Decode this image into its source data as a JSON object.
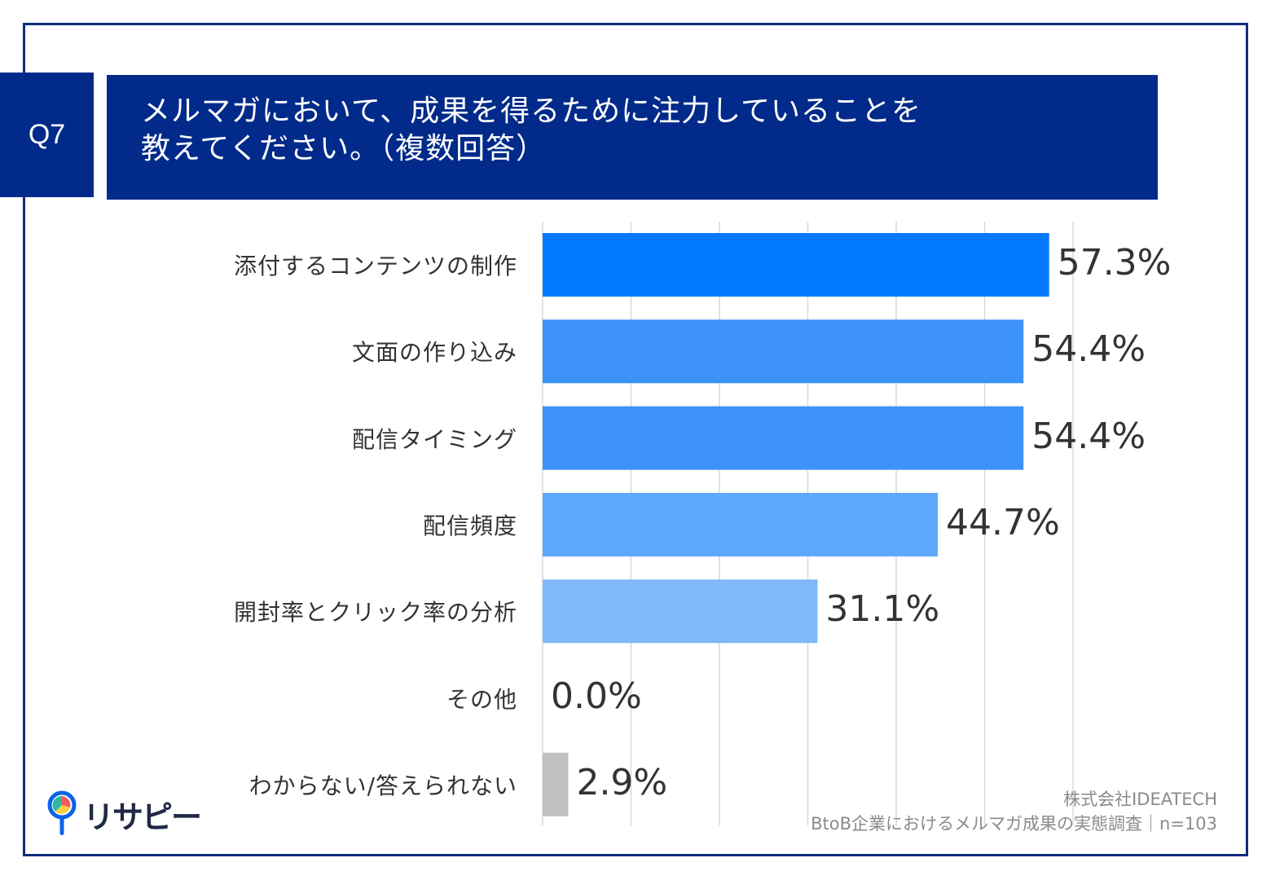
{
  "header": {
    "badge": "Q7",
    "title_line1": "メルマガにおいて、成果を得るために注力していることを",
    "title_line2": "教えてください。（複数回答）"
  },
  "chart_data": {
    "type": "bar",
    "orientation": "horizontal",
    "categories": [
      "添付するコンテンツの制作",
      "文面の作り込み",
      "配信タイミング",
      "配信頻度",
      "開封率とクリック率の分析",
      "その他",
      "わからない/答えられない"
    ],
    "values": [
      57.3,
      54.4,
      54.4,
      44.7,
      31.1,
      0.0,
      2.9
    ],
    "value_labels": [
      "57.3%",
      "54.4%",
      "54.4%",
      "44.7%",
      "31.1%",
      "0.0%",
      "2.9%"
    ],
    "colors": [
      "#0279fd",
      "#3d92f8",
      "#3d92f8",
      "#5ea8fb",
      "#80b9fb",
      "#80b9fb",
      "#c1c1c1"
    ],
    "xlim": [
      0,
      60
    ],
    "grid": true
  },
  "footer": {
    "source_line1": "株式会社IDEATECH",
    "source_line2": "BtoB企業におけるメルマガ成果の実態調査｜n=103",
    "logo_text": "リサピー"
  }
}
